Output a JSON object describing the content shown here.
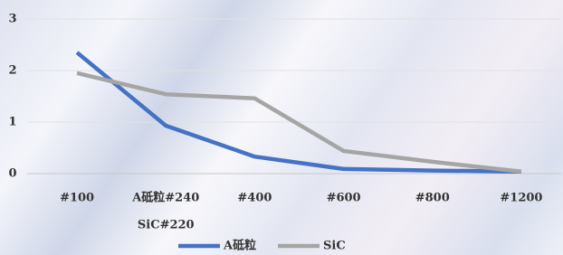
{
  "chart_data": {
    "type": "line",
    "categories": [
      "#100",
      [
        "A砥粒#240",
        "SiC#220"
      ],
      "#400",
      "#600",
      "#800",
      "#1200"
    ],
    "series": [
      {
        "name": "A砥粒",
        "color": "#4472c4",
        "values": [
          2.35,
          0.93,
          0.33,
          0.09,
          0.06,
          0.04
        ]
      },
      {
        "name": "SiC",
        "color": "#a5a5a5",
        "values": [
          1.95,
          1.54,
          1.46,
          0.44,
          0.23,
          0.04
        ]
      }
    ],
    "ylim": [
      0,
      3
    ],
    "yticks": [
      0,
      1,
      2,
      3
    ],
    "grid": true,
    "legend": "bottom"
  }
}
